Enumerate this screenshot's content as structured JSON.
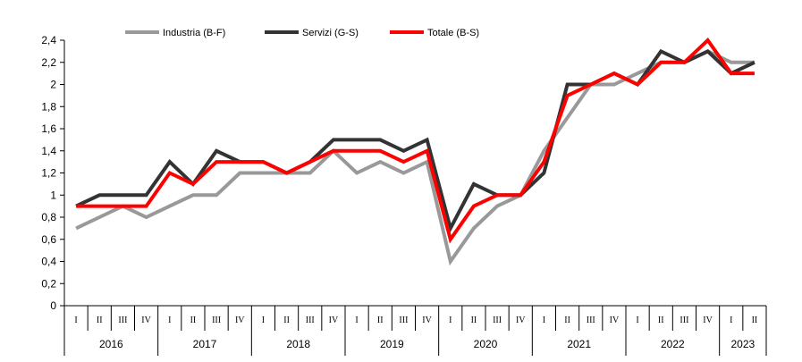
{
  "chart_data": {
    "type": "line",
    "title": "",
    "xlabel": "",
    "ylabel": "",
    "ylim": [
      0,
      2.4
    ],
    "yticks": [
      "0",
      "0,2",
      "0,4",
      "0,6",
      "0,8",
      "1",
      "1,2",
      "1,4",
      "1,6",
      "1,8",
      "2",
      "2,2",
      "2,4"
    ],
    "grid": false,
    "legend_position": "top",
    "years": [
      "2016",
      "2017",
      "2018",
      "2019",
      "2020",
      "2021",
      "2022",
      "2023"
    ],
    "quarters_per_year": [
      4,
      4,
      4,
      4,
      4,
      4,
      4,
      2
    ],
    "quarter_labels": [
      "I",
      "II",
      "III",
      "IV"
    ],
    "categories": [
      "2016 I",
      "2016 II",
      "2016 III",
      "2016 IV",
      "2017 I",
      "2017 II",
      "2017 III",
      "2017 IV",
      "2018 I",
      "2018 II",
      "2018 III",
      "2018 IV",
      "2019 I",
      "2019 II",
      "2019 III",
      "2019 IV",
      "2020 I",
      "2020 II",
      "2020 III",
      "2020 IV",
      "2021 I",
      "2021 II",
      "2021 III",
      "2021 IV",
      "2022 I",
      "2022 II",
      "2022 III",
      "2022 IV",
      "2023 I",
      "2023 II"
    ],
    "series": [
      {
        "name": "Industria (B-F)",
        "color": "#999999",
        "values": [
          0.7,
          0.8,
          0.9,
          0.8,
          0.9,
          1.0,
          1.0,
          1.2,
          1.2,
          1.2,
          1.2,
          1.4,
          1.2,
          1.3,
          1.2,
          1.3,
          0.4,
          0.7,
          0.9,
          1.0,
          1.4,
          1.7,
          2.0,
          2.0,
          2.1,
          2.2,
          2.2,
          2.3,
          2.2,
          2.2
        ]
      },
      {
        "name": "Servizi (G-S)",
        "color": "#333333",
        "values": [
          0.9,
          1.0,
          1.0,
          1.0,
          1.3,
          1.1,
          1.4,
          1.3,
          1.3,
          1.2,
          1.3,
          1.5,
          1.5,
          1.5,
          1.4,
          1.5,
          0.7,
          1.1,
          1.0,
          1.0,
          1.2,
          2.0,
          2.0,
          2.1,
          2.0,
          2.3,
          2.2,
          2.3,
          2.1,
          2.2
        ]
      },
      {
        "name": "Totale (B-S)",
        "color": "#ff0000",
        "values": [
          0.9,
          0.9,
          0.9,
          0.9,
          1.2,
          1.1,
          1.3,
          1.3,
          1.3,
          1.2,
          1.3,
          1.4,
          1.4,
          1.4,
          1.3,
          1.4,
          0.6,
          0.9,
          1.0,
          1.0,
          1.3,
          1.9,
          2.0,
          2.1,
          2.0,
          2.2,
          2.2,
          2.4,
          2.1,
          2.1
        ]
      }
    ]
  }
}
